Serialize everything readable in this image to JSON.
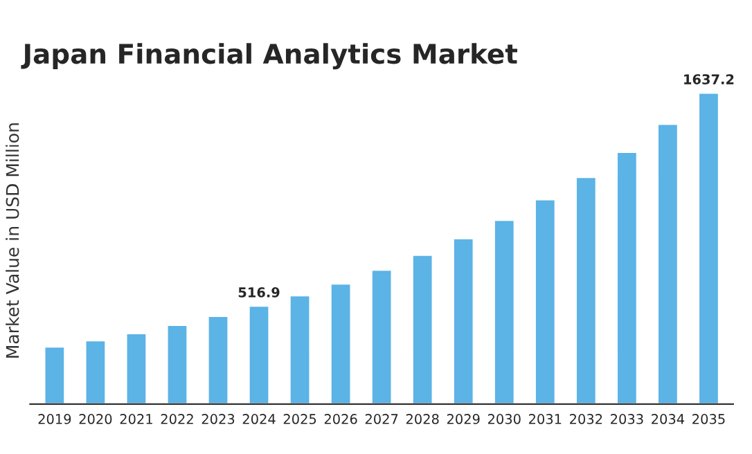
{
  "chart_data": {
    "type": "bar",
    "title": "Japan Financial Analytics Market",
    "ylabel": "Market Value in USD Million",
    "categories": [
      "2019",
      "2020",
      "2021",
      "2022",
      "2023",
      "2024",
      "2025",
      "2026",
      "2027",
      "2028",
      "2029",
      "2030",
      "2031",
      "2032",
      "2033",
      "2034",
      "2035"
    ],
    "values": [
      302,
      335,
      372,
      416,
      463,
      516.9,
      571,
      633,
      706,
      784,
      872,
      968,
      1076,
      1194,
      1326,
      1473,
      1637.2
    ],
    "value_labels": [
      null,
      null,
      null,
      null,
      null,
      "516.9",
      null,
      null,
      null,
      null,
      null,
      null,
      null,
      null,
      null,
      null,
      "1637.2"
    ],
    "color": "#5bb3e6",
    "grid": false,
    "legend": false
  }
}
